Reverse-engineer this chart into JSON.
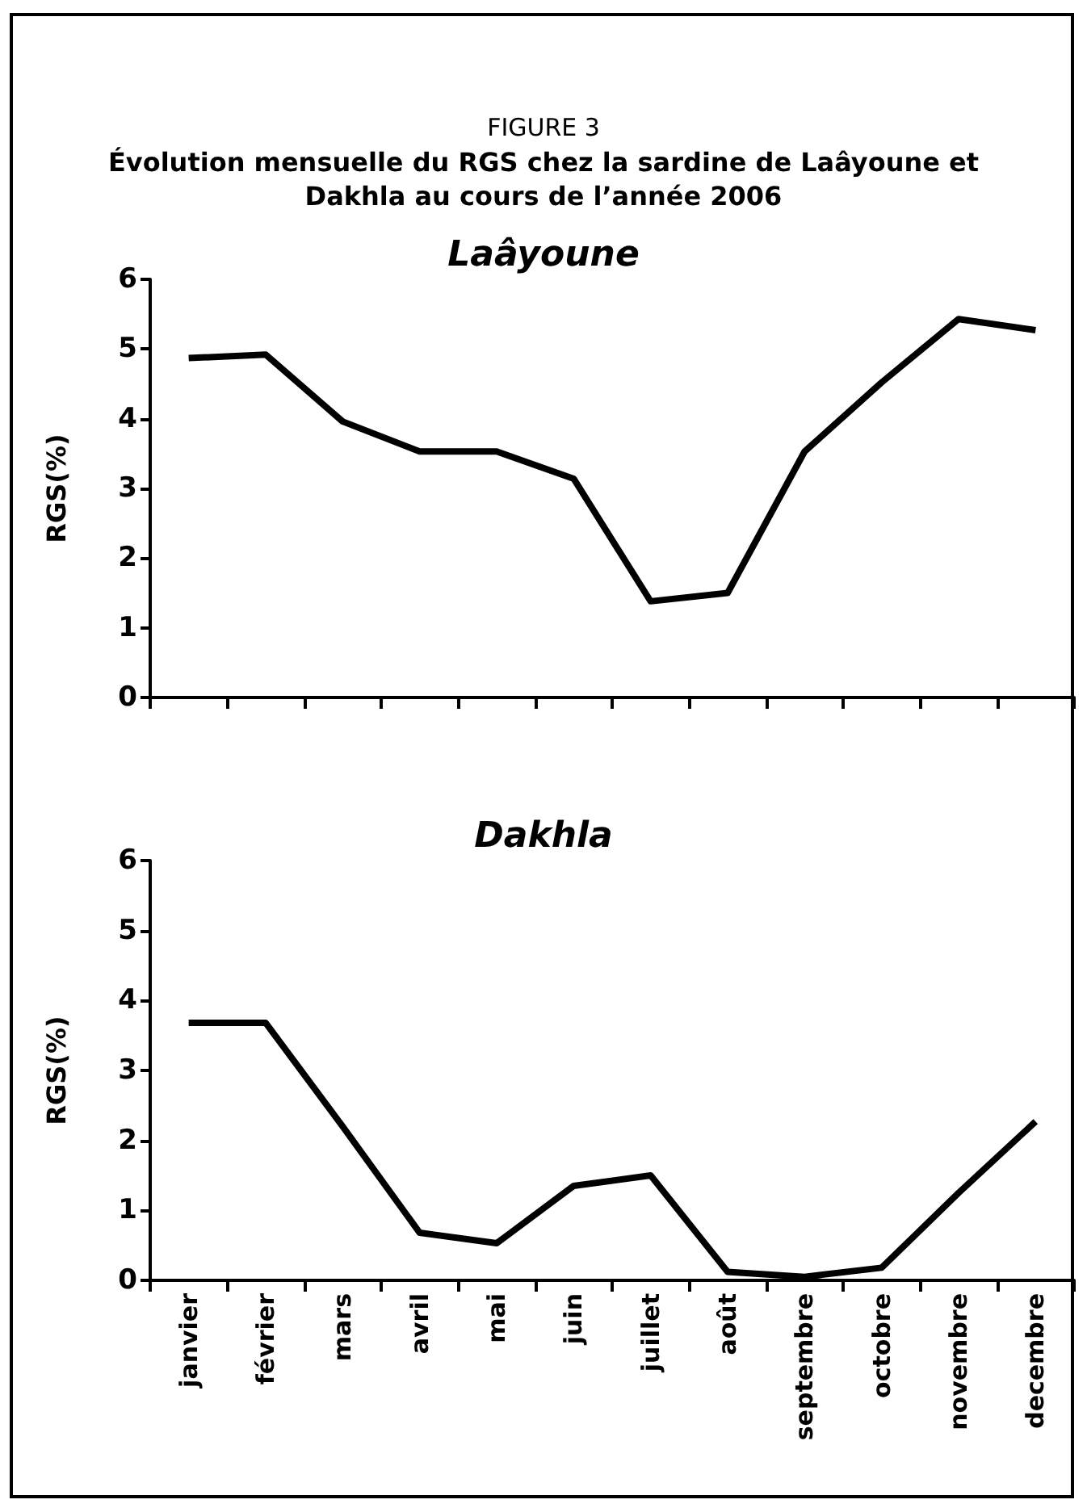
{
  "chart_data": [
    {
      "type": "line",
      "title": "Laâyoune",
      "ylabel": "RGS(%)",
      "annotations": [
        "FIGURE 3",
        "Évolution mensuelle du RGS chez la sardine de Laâyoune et Dakhla au cours de l’année 2006"
      ],
      "categories": [
        null,
        null,
        null,
        null,
        null,
        null,
        null,
        null,
        null,
        null,
        null,
        null
      ],
      "series": [
        {
          "color": "#000000",
          "values": [
            4.87,
            4.92,
            3.96,
            3.53,
            3.53,
            3.14,
            1.38,
            1.5,
            3.53,
            4.52,
            5.43,
            5.27
          ]
        }
      ],
      "ylim": [
        0,
        6
      ],
      "yticks": [
        0,
        1,
        2,
        3,
        4,
        5,
        6
      ],
      "tick_labels": "y",
      "grid": false,
      "marker": "none",
      "line_style": "solid"
    },
    {
      "type": "line",
      "title": "Dakhla",
      "ylabel": "RGS(%)",
      "categories": [
        "janvier",
        "février",
        "mars",
        "avril",
        "mai",
        "juin",
        "juillet",
        "août",
        "septembre",
        "octobre",
        "novembre",
        "decembre"
      ],
      "series": [
        {
          "color": "#000000",
          "values": [
            3.68,
            3.68,
            2.2,
            0.68,
            0.53,
            1.35,
            1.5,
            0.12,
            0.05,
            0.18,
            1.25,
            2.27
          ]
        }
      ],
      "ylim": [
        0,
        6
      ],
      "yticks": [
        0,
        1,
        2,
        3,
        4,
        5,
        6
      ],
      "grid": false,
      "marker": "none",
      "line_style": "solid"
    }
  ]
}
